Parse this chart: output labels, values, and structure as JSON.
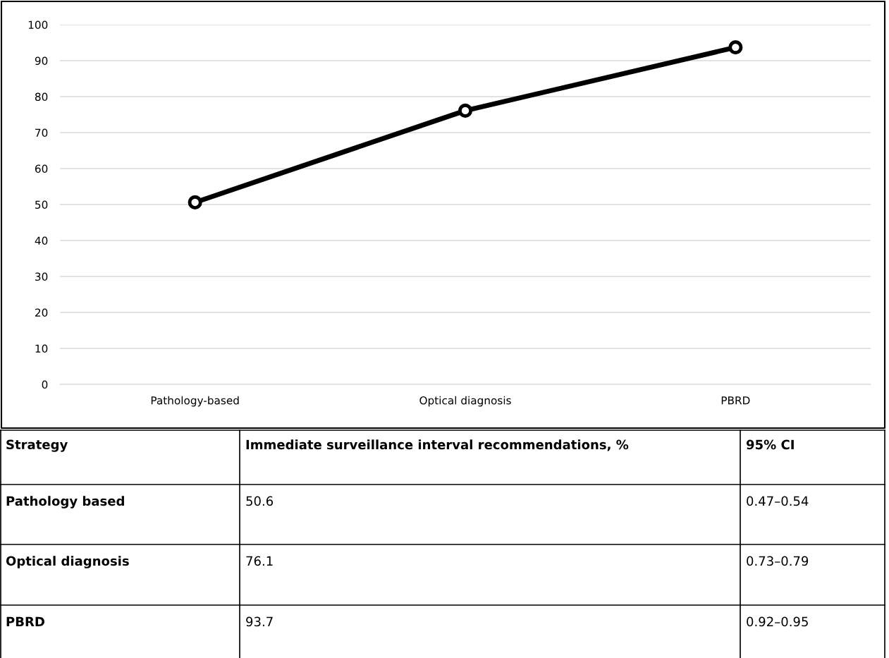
{
  "chart_data": {
    "type": "line",
    "categories": [
      "Pathology-based",
      "Optical diagnosis",
      "PBRD"
    ],
    "series": [
      {
        "color": "#000000",
        "values": [
          50.6,
          76.1,
          93.7
        ]
      }
    ],
    "ylim": [
      0,
      100
    ],
    "yticks": [
      0,
      10,
      20,
      30,
      40,
      50,
      60,
      70,
      80,
      90,
      100
    ],
    "grid": "y",
    "marker": "circle",
    "line_style": "solid",
    "annotations": [
      "Strategy",
      "Immediate surveillance interval recommendations, %",
      "95% CI",
      "Pathology based",
      "50.6",
      "0.47–0.54",
      "Optical diagnosis",
      "76.1",
      "0.73–0.79",
      "PBRD",
      "93.7",
      "0.92–0.95"
    ]
  }
}
